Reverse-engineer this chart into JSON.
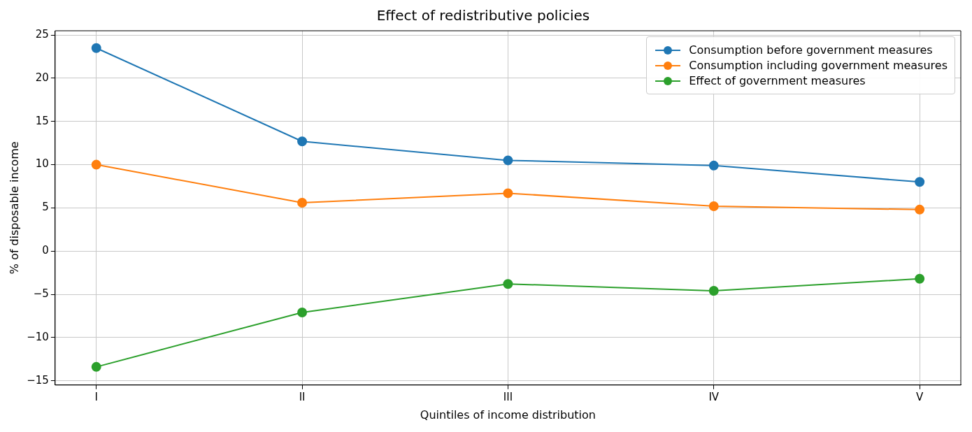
{
  "chart_data": {
    "type": "line",
    "title": "Effect of redistributive policies",
    "xlabel": "Quintiles of income distribution",
    "ylabel": "% of disposable income",
    "categories": [
      "I",
      "II",
      "III",
      "IV",
      "V"
    ],
    "series": [
      {
        "name": "Consumption before government measures",
        "color": "#1f77b4",
        "values": [
          23.5,
          12.7,
          10.5,
          9.9,
          8.0
        ]
      },
      {
        "name": "Consumption including government measures",
        "color": "#ff7f0e",
        "values": [
          10.0,
          5.6,
          6.7,
          5.2,
          4.8
        ]
      },
      {
        "name": "Effect of government measures",
        "color": "#2ca02c",
        "values": [
          -13.4,
          -7.1,
          -3.8,
          -4.6,
          -3.2
        ]
      }
    ],
    "ylim": [
      -15.5,
      25.5
    ],
    "yticks": [
      -15,
      -10,
      -5,
      0,
      5,
      10,
      15,
      20,
      25
    ],
    "grid": true,
    "legend": "top right",
    "marker": "circle",
    "line_style": "solid"
  }
}
